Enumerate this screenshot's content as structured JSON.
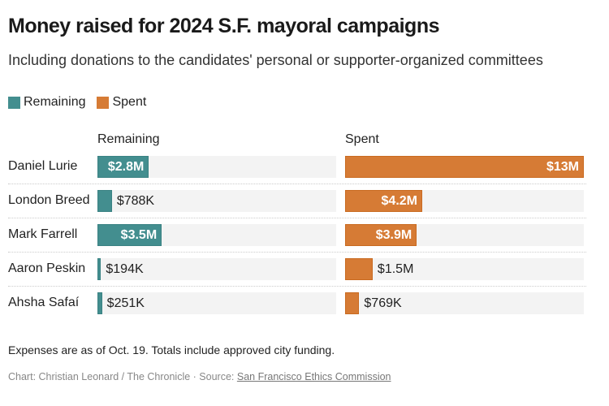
{
  "chart_data": {
    "type": "bar",
    "title": "Money raised for 2024 S.F. mayoral campaigns",
    "subtitle": "Including donations to the candidates' personal or supporter-organized committees",
    "categories": [
      "Daniel Lurie",
      "London Breed",
      "Mark Farrell",
      "Aaron Peskin",
      "Ahsha Safaí"
    ],
    "series": [
      {
        "name": "Remaining",
        "color": "#438e8f",
        "values": [
          2800000,
          788000,
          3500000,
          194000,
          251000
        ],
        "labels": [
          "$2.8M",
          "$788K",
          "$3.5M",
          "$194K",
          "$251K"
        ]
      },
      {
        "name": "Spent",
        "color": "#d67b35",
        "values": [
          13000000,
          4200000,
          3900000,
          1500000,
          769000
        ],
        "labels": [
          "$13M",
          "$4.2M",
          "$3.9M",
          "$1.5M",
          "$769K"
        ]
      }
    ],
    "xlim": [
      0,
      13000000
    ],
    "legend": "top-left",
    "orientation": "horizontal",
    "layout": "small-multiples"
  },
  "note": "Expenses are as of Oct. 19. Totals include approved city funding.",
  "credit": {
    "prefix": "Chart: Christian Leonard / The Chronicle · Source: ",
    "source_link": "San Francisco Ethics Commission"
  }
}
